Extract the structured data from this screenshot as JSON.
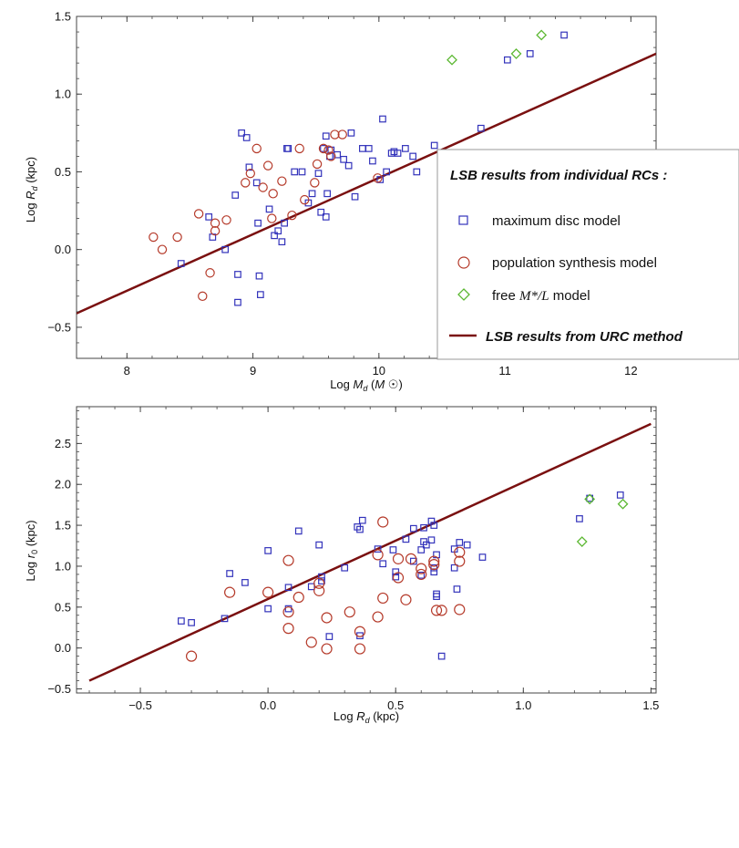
{
  "colors": {
    "max_disc": "#3333bb",
    "pop_synth": "#b53a2a",
    "free_ml": "#5cb832",
    "urc_line": "#7a1010"
  },
  "legend": {
    "title": "LSB results from individual RCs :",
    "max_disc": "maximum disc model",
    "pop_synth": "population synthesis model",
    "free_ml_prefix": "free",
    "free_ml_math": "M*/L",
    "free_ml_suffix": "model",
    "urc": "LSB results from URC method"
  },
  "chart_data": [
    {
      "type": "scatter",
      "xlabel": "Log M_d (M☉)",
      "ylabel": "Log R_d (kpc)",
      "xlim": [
        7.6,
        12.2
      ],
      "ylim": [
        -0.7,
        1.5
      ],
      "xticks": [
        8,
        9,
        10,
        11,
        12
      ],
      "xtick_labels": [
        "8",
        "9",
        "10",
        "11",
        "12"
      ],
      "yticks": [
        -0.5,
        0.0,
        0.5,
        1.0,
        1.5
      ],
      "ytick_labels": [
        "-0.5",
        "0.0",
        "0.5",
        "1.0",
        "1.5"
      ],
      "legend_position": "right",
      "line": {
        "name": "LSB results from URC method",
        "x": [
          7.6,
          12.2
        ],
        "y": [
          -0.41,
          1.26
        ]
      },
      "series": [
        {
          "name": "maximum disc model",
          "marker": "square",
          "points": [
            [
              8.43,
              -0.09
            ],
            [
              8.65,
              0.21
            ],
            [
              8.68,
              0.08
            ],
            [
              8.78,
              0.0
            ],
            [
              8.86,
              0.35
            ],
            [
              8.91,
              0.75
            ],
            [
              8.95,
              0.72
            ],
            [
              8.88,
              -0.16
            ],
            [
              8.88,
              -0.34
            ],
            [
              8.97,
              0.53
            ],
            [
              9.03,
              0.43
            ],
            [
              9.04,
              0.17
            ],
            [
              9.05,
              -0.17
            ],
            [
              9.06,
              -0.29
            ],
            [
              9.13,
              0.26
            ],
            [
              9.17,
              0.09
            ],
            [
              9.2,
              0.12
            ],
            [
              9.23,
              0.05
            ],
            [
              9.25,
              0.17
            ],
            [
              9.27,
              0.65
            ],
            [
              9.28,
              0.65
            ],
            [
              9.33,
              0.5
            ],
            [
              9.39,
              0.5
            ],
            [
              9.44,
              0.3
            ],
            [
              9.47,
              0.36
            ],
            [
              9.52,
              0.49
            ],
            [
              9.54,
              0.24
            ],
            [
              9.56,
              0.65
            ],
            [
              9.58,
              0.73
            ],
            [
              9.58,
              0.21
            ],
            [
              9.59,
              0.36
            ],
            [
              9.61,
              0.6
            ],
            [
              9.62,
              0.64
            ],
            [
              9.67,
              0.61
            ],
            [
              9.72,
              0.58
            ],
            [
              9.76,
              0.54
            ],
            [
              9.78,
              0.75
            ],
            [
              9.81,
              0.34
            ],
            [
              9.87,
              0.65
            ],
            [
              9.92,
              0.65
            ],
            [
              9.95,
              0.57
            ],
            [
              10.01,
              0.45
            ],
            [
              10.03,
              0.84
            ],
            [
              10.06,
              0.5
            ],
            [
              10.1,
              0.62
            ],
            [
              10.12,
              0.63
            ],
            [
              10.15,
              0.62
            ],
            [
              10.21,
              0.65
            ],
            [
              10.27,
              0.6
            ],
            [
              10.3,
              0.5
            ],
            [
              10.44,
              0.67
            ],
            [
              10.81,
              0.78
            ],
            [
              11.02,
              1.22
            ],
            [
              11.2,
              1.26
            ],
            [
              11.47,
              1.38
            ]
          ]
        },
        {
          "name": "population synthesis model",
          "marker": "circle",
          "points": [
            [
              8.21,
              0.08
            ],
            [
              8.28,
              0.0
            ],
            [
              8.4,
              0.08
            ],
            [
              8.57,
              0.23
            ],
            [
              8.6,
              -0.3
            ],
            [
              8.66,
              -0.15
            ],
            [
              8.7,
              0.12
            ],
            [
              8.7,
              0.17
            ],
            [
              8.79,
              0.19
            ],
            [
              8.94,
              0.43
            ],
            [
              8.98,
              0.49
            ],
            [
              9.03,
              0.65
            ],
            [
              9.08,
              0.4
            ],
            [
              9.12,
              0.54
            ],
            [
              9.15,
              0.2
            ],
            [
              9.16,
              0.36
            ],
            [
              9.23,
              0.44
            ],
            [
              9.31,
              0.22
            ],
            [
              9.37,
              0.65
            ],
            [
              9.41,
              0.32
            ],
            [
              9.49,
              0.43
            ],
            [
              9.51,
              0.55
            ],
            [
              9.56,
              0.65
            ],
            [
              9.6,
              0.64
            ],
            [
              9.62,
              0.6
            ],
            [
              9.65,
              0.74
            ],
            [
              9.71,
              0.74
            ],
            [
              9.99,
              0.46
            ]
          ]
        },
        {
          "name": "free M*/L model",
          "marker": "diamond",
          "points": [
            [
              10.58,
              1.22
            ],
            [
              11.09,
              1.26
            ],
            [
              11.29,
              1.38
            ]
          ]
        }
      ]
    },
    {
      "type": "scatter",
      "xlabel": "Log R_d (kpc)",
      "ylabel": "Log r_0 (kpc)",
      "xlim": [
        -0.75,
        1.52
      ],
      "ylim": [
        -0.55,
        2.95
      ],
      "xticks": [
        -0.5,
        0.0,
        0.5,
        1.0,
        1.5
      ],
      "xtick_labels": [
        "-0.5",
        "0.0",
        "0.5",
        "1.0",
        "1.5"
      ],
      "yticks": [
        -0.5,
        0.0,
        0.5,
        1.0,
        1.5,
        2.0,
        2.5
      ],
      "ytick_labels": [
        "-0.5",
        "0.0",
        "0.5",
        "1.0",
        "1.5",
        "2.0",
        "2.5"
      ],
      "line": {
        "name": "LSB results from URC method",
        "x": [
          -0.7,
          1.5
        ],
        "y": [
          -0.4,
          2.74
        ]
      },
      "series": [
        {
          "name": "maximum disc model",
          "marker": "square",
          "points": [
            [
              -0.34,
              0.33
            ],
            [
              -0.3,
              0.31
            ],
            [
              -0.17,
              0.36
            ],
            [
              -0.15,
              0.91
            ],
            [
              -0.09,
              0.8
            ],
            [
              0.0,
              1.19
            ],
            [
              0.0,
              0.48
            ],
            [
              0.08,
              0.74
            ],
            [
              0.08,
              0.48
            ],
            [
              0.12,
              1.43
            ],
            [
              0.17,
              0.75
            ],
            [
              0.2,
              1.26
            ],
            [
              0.21,
              0.87
            ],
            [
              0.21,
              0.82
            ],
            [
              0.24,
              0.14
            ],
            [
              0.3,
              0.98
            ],
            [
              0.35,
              1.48
            ],
            [
              0.36,
              1.45
            ],
            [
              0.36,
              0.15
            ],
            [
              0.37,
              1.56
            ],
            [
              0.43,
              1.21
            ],
            [
              0.45,
              1.03
            ],
            [
              0.49,
              1.2
            ],
            [
              0.5,
              0.93
            ],
            [
              0.5,
              0.87
            ],
            [
              0.54,
              1.33
            ],
            [
              0.57,
              1.46
            ],
            [
              0.57,
              1.06
            ],
            [
              0.6,
              0.89
            ],
            [
              0.6,
              1.2
            ],
            [
              0.61,
              1.47
            ],
            [
              0.61,
              1.3
            ],
            [
              0.62,
              1.26
            ],
            [
              0.64,
              1.32
            ],
            [
              0.64,
              1.55
            ],
            [
              0.65,
              0.98
            ],
            [
              0.65,
              0.93
            ],
            [
              0.65,
              1.5
            ],
            [
              0.66,
              1.14
            ],
            [
              0.66,
              0.66
            ],
            [
              0.66,
              0.63
            ],
            [
              0.68,
              -0.1
            ],
            [
              0.73,
              0.98
            ],
            [
              0.73,
              1.21
            ],
            [
              0.74,
              0.72
            ],
            [
              0.75,
              1.29
            ],
            [
              0.78,
              1.26
            ],
            [
              0.84,
              1.11
            ],
            [
              1.22,
              1.58
            ],
            [
              1.26,
              1.83
            ],
            [
              1.38,
              1.87
            ]
          ]
        },
        {
          "name": "population synthesis model",
          "marker": "circle",
          "points": [
            [
              -0.3,
              -0.1
            ],
            [
              -0.15,
              0.68
            ],
            [
              0.0,
              0.68
            ],
            [
              0.08,
              1.07
            ],
            [
              0.08,
              0.44
            ],
            [
              0.08,
              0.24
            ],
            [
              0.12,
              0.62
            ],
            [
              0.17,
              0.07
            ],
            [
              0.2,
              0.7
            ],
            [
              0.2,
              0.79
            ],
            [
              0.23,
              -0.01
            ],
            [
              0.23,
              0.37
            ],
            [
              0.32,
              0.44
            ],
            [
              0.36,
              0.2
            ],
            [
              0.36,
              -0.01
            ],
            [
              0.43,
              0.38
            ],
            [
              0.43,
              1.14
            ],
            [
              0.45,
              1.54
            ],
            [
              0.45,
              0.61
            ],
            [
              0.51,
              1.09
            ],
            [
              0.51,
              0.86
            ],
            [
              0.54,
              0.59
            ],
            [
              0.56,
              1.09
            ],
            [
              0.6,
              0.97
            ],
            [
              0.6,
              0.9
            ],
            [
              0.65,
              1.02
            ],
            [
              0.65,
              1.06
            ],
            [
              0.66,
              0.46
            ],
            [
              0.68,
              0.46
            ],
            [
              0.75,
              1.17
            ],
            [
              0.75,
              1.06
            ],
            [
              0.75,
              0.47
            ]
          ]
        },
        {
          "name": "free M*/L model",
          "marker": "diamond",
          "points": [
            [
              1.23,
              1.3
            ],
            [
              1.26,
              1.82
            ],
            [
              1.39,
              1.76
            ]
          ]
        }
      ]
    }
  ]
}
